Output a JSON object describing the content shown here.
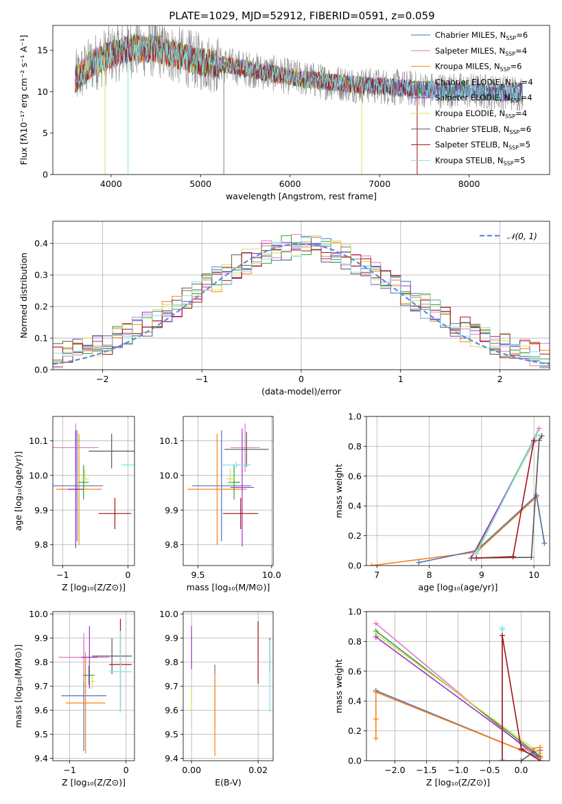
{
  "figure_title": "PLATE=1029, MJD=52912, FIBERID=0591, z=0.059",
  "colors": {
    "chabrier_miles": "#4c72b0",
    "salpeter_miles": "#e377c2",
    "kroupa_miles": "#ff7f0e",
    "chabrier_elodie": "#2ca02c",
    "salpeter_elodie": "#9b2fc9",
    "kroupa_elodie": "#d4e157",
    "chabrier_stelib": "#555555",
    "salpeter_stelib": "#a50f15",
    "kroupa_stelib": "#80deea",
    "gaussian": "#5b8bd9",
    "spectrum_data": "#808080"
  },
  "chart_data": [
    {
      "id": "spectrum",
      "type": "line",
      "title": "PLATE=1029, MJD=52912, FIBERID=0591, z=0.059",
      "xlabel": "wavelength [Angstrom, rest frame]",
      "ylabel": "Flux [fλ10⁻¹⁷ erg cm⁻² s⁻¹ A⁻¹]",
      "xlim": [
        3350,
        8900
      ],
      "ylim": [
        0,
        18
      ],
      "xticks": [
        "4000",
        "5000",
        "6000",
        "7000",
        "8000"
      ],
      "yticks": [
        "0",
        "5",
        "10",
        "15"
      ],
      "grid": false,
      "legend_position": "upper-right",
      "legend": [
        "Chabrier MILES, N_SSP=6",
        "Salpeter MILES, N_SSP=4",
        "Kroupa MILES, N_SSP=6",
        "Chabrier ELODIE, N_SSP=4",
        "Salpeter ELODIE, N_SSP=4",
        "Kroupa ELODIE, N_SSP=4",
        "Chabrier STELIB, N_SSP=6",
        "Salpeter STELIB, N_SSP=5",
        "Kroupa STELIB, N_SSP=5"
      ],
      "continuum_x": [
        3600,
        3800,
        4000,
        4200,
        4500,
        4800,
        5000,
        5300,
        5600,
        6000,
        6400,
        6800,
        7200,
        7600,
        8000,
        8400,
        8800
      ],
      "continuum_y": [
        11.5,
        13.5,
        14.5,
        15.2,
        15.2,
        14.2,
        13.6,
        13.2,
        12.6,
        11.8,
        11.2,
        10.8,
        10.5,
        10.2,
        10.1,
        9.9,
        9.8
      ]
    },
    {
      "id": "residuals",
      "type": "line",
      "xlabel": "(data-model)/error",
      "ylabel": "Normed distribution",
      "xlim": [
        -2.5,
        2.5
      ],
      "ylim": [
        0,
        0.47
      ],
      "xticks": [
        "−2",
        "−1",
        "0",
        "1",
        "2"
      ],
      "yticks": [
        "0.0",
        "0.1",
        "0.2",
        "0.3",
        "0.4"
      ],
      "grid": true,
      "legend_position": "upper-right",
      "legend": [
        "𝒩(0, 1)"
      ],
      "gaussian": {
        "mean": 0,
        "sigma": 1
      }
    },
    {
      "id": "age-vs-Z",
      "type": "scatter",
      "xlabel": "Z [log₁₀(Z/Z⊙)]",
      "ylabel": "age  [log₁₀(age/yr)]",
      "xlim": [
        -1.15,
        0.1
      ],
      "ylim": [
        9.74,
        10.17
      ],
      "xticks": [
        "−1",
        "0"
      ],
      "yticks": [
        "9.8",
        "9.9",
        "10.0",
        "10.1"
      ],
      "grid": true,
      "errorbars": [
        {
          "c": "chabrier_miles",
          "x": -0.78,
          "xe": 0.4,
          "y": 9.97,
          "ye": 0.16
        },
        {
          "c": "salpeter_miles",
          "x": -0.8,
          "xe": 0.35,
          "y": 10.08,
          "ye": 0.07
        },
        {
          "c": "kroupa_miles",
          "x": -0.75,
          "xe": 0.35,
          "y": 9.96,
          "ye": 0.16
        },
        {
          "c": "chabrier_elodie",
          "x": -0.68,
          "xe": 0.08,
          "y": 9.98,
          "ye": 0.05
        },
        {
          "c": "salpeter_elodie",
          "x": -0.8,
          "xe": 0.12,
          "y": 9.96,
          "ye": 0.17
        },
        {
          "c": "kroupa_elodie",
          "x": -0.66,
          "xe": 0.06,
          "y": 9.99,
          "ye": 0.03
        },
        {
          "c": "chabrier_stelib",
          "x": -0.25,
          "xe": 0.35,
          "y": 10.07,
          "ye": 0.05
        },
        {
          "c": "salpeter_stelib",
          "x": -0.2,
          "xe": 0.25,
          "y": 9.89,
          "ye": 0.045
        },
        {
          "c": "kroupa_stelib",
          "x": 0.0,
          "xe": 0.1,
          "y": 10.03,
          "ye": 0.01
        }
      ]
    },
    {
      "id": "age-vs-mass",
      "type": "scatter",
      "xlabel": "mass [log₁₀(M/M⊙)]",
      "ylabel": "",
      "xlim": [
        9.4,
        10.01
      ],
      "ylim": [
        9.74,
        10.17
      ],
      "xticks": [
        "9.5",
        "10.0"
      ],
      "yticks": [
        "9.8",
        "9.9",
        "10.0",
        "10.1"
      ],
      "grid": true,
      "errorbars": [
        {
          "c": "chabrier_miles",
          "x": 9.66,
          "xe": 0.2,
          "y": 9.97,
          "ye": 0.16
        },
        {
          "c": "salpeter_miles",
          "x": 9.82,
          "xe": 0.1,
          "y": 10.08,
          "ye": 0.07
        },
        {
          "c": "kroupa_miles",
          "x": 9.63,
          "xe": 0.2,
          "y": 9.96,
          "ye": 0.16
        },
        {
          "c": "chabrier_elodie",
          "x": 9.745,
          "xe": 0.04,
          "y": 9.98,
          "ye": 0.05
        },
        {
          "c": "salpeter_elodie",
          "x": 9.8,
          "xe": 0.08,
          "y": 9.965,
          "ye": 0.17
        },
        {
          "c": "kroupa_elodie",
          "x": 9.72,
          "xe": 0.03,
          "y": 9.99,
          "ye": 0.03
        },
        {
          "c": "chabrier_stelib",
          "x": 9.83,
          "xe": 0.15,
          "y": 10.075,
          "ye": 0.05
        },
        {
          "c": "salpeter_stelib",
          "x": 9.79,
          "xe": 0.12,
          "y": 9.89,
          "ye": 0.045
        },
        {
          "c": "kroupa_stelib",
          "x": 9.76,
          "xe": 0.1,
          "y": 10.03,
          "ye": 0.01
        }
      ]
    },
    {
      "id": "weight-vs-age",
      "type": "line",
      "xlabel": "age  [log₁₀(age/yr)]",
      "ylabel": "mass weight",
      "xlim": [
        6.8,
        10.3
      ],
      "ylim": [
        0,
        1.0
      ],
      "xticks": [
        "7",
        "8",
        "9",
        "10"
      ],
      "yticks": [
        "0.0",
        "0.2",
        "0.4",
        "0.6",
        "0.8",
        "1.0"
      ],
      "grid": true,
      "lines": [
        {
          "c": "kroupa_miles",
          "x": [
            6.9,
            8.9,
            10.05,
            10.2
          ],
          "y": [
            0.0,
            0.09,
            0.46,
            0.15
          ]
        },
        {
          "c": "chabrier_miles",
          "x": [
            7.8,
            8.9,
            10.05,
            10.2
          ],
          "y": [
            0.02,
            0.1,
            0.47,
            0.15
          ]
        },
        {
          "c": "salpeter_miles",
          "x": [
            8.9,
            10.1
          ],
          "y": [
            0.08,
            0.92
          ]
        },
        {
          "c": "chabrier_elodie",
          "x": [
            8.9,
            10.05
          ],
          "y": [
            0.1,
            0.88
          ]
        },
        {
          "c": "salpeter_elodie",
          "x": [
            8.8,
            10.0
          ],
          "y": [
            0.05,
            0.83
          ]
        },
        {
          "c": "kroupa_elodie",
          "x": [
            8.9,
            10.05
          ],
          "y": [
            0.09,
            0.87
          ]
        },
        {
          "c": "kroupa_stelib",
          "x": [
            8.9,
            10.05
          ],
          "y": [
            0.08,
            0.88
          ]
        },
        {
          "c": "chabrier_stelib",
          "x": [
            8.8,
            9.95,
            10.1,
            10.15
          ],
          "y": [
            0.05,
            0.055,
            0.84,
            0.87
          ]
        },
        {
          "c": "salpeter_stelib",
          "x": [
            8.9,
            9.6,
            10.0
          ],
          "y": [
            0.05,
            0.06,
            0.84
          ]
        }
      ]
    },
    {
      "id": "mass-vs-Z",
      "type": "scatter",
      "xlabel": "Z [log₁₀(Z/Z⊙)]",
      "ylabel": "mass [log₁₀(M/M⊙)]",
      "xlim": [
        -1.3,
        0.15
      ],
      "ylim": [
        9.39,
        10.01
      ],
      "xticks": [
        "−1",
        "0"
      ],
      "yticks": [
        "9.4",
        "9.5",
        "9.6",
        "9.7",
        "9.8",
        "9.9",
        "10.0"
      ],
      "grid": true,
      "errorbars": [
        {
          "c": "chabrier_miles",
          "x": -0.75,
          "xe": 0.4,
          "y": 9.66,
          "ye": 0.23
        },
        {
          "c": "salpeter_miles",
          "x": -0.75,
          "xe": 0.45,
          "y": 9.82,
          "ye": 0.1
        },
        {
          "c": "kroupa_miles",
          "x": -0.72,
          "xe": 0.35,
          "y": 9.63,
          "ye": 0.21
        },
        {
          "c": "chabrier_elodie",
          "x": -0.66,
          "xe": 0.1,
          "y": 9.745,
          "ye": 0.04
        },
        {
          "c": "salpeter_elodie",
          "x": -0.65,
          "xe": 0.15,
          "y": 9.82,
          "ye": 0.13
        },
        {
          "c": "kroupa_elodie",
          "x": -0.6,
          "xe": 0.05,
          "y": 9.72,
          "ye": 0.03
        },
        {
          "c": "chabrier_stelib",
          "x": -0.25,
          "xe": 0.35,
          "y": 9.825,
          "ye": 0.075
        },
        {
          "c": "salpeter_stelib",
          "x": -0.1,
          "xe": 0.2,
          "y": 9.79,
          "ye": 0.19
        },
        {
          "c": "kroupa_stelib",
          "x": -0.1,
          "xe": 0.2,
          "y": 9.76,
          "ye": 0.17
        }
      ]
    },
    {
      "id": "mass-vs-ebv",
      "type": "scatter",
      "xlabel": "E(B-V)",
      "ylabel": "",
      "xlim": [
        -0.0025,
        0.0245
      ],
      "ylim": [
        9.39,
        10.01
      ],
      "xticks": [
        "0.00",
        "0.02"
      ],
      "yticks": [
        "9.4",
        "9.5",
        "9.6",
        "9.7",
        "9.8",
        "9.9",
        "10.0"
      ],
      "grid": true,
      "errorbars": [
        {
          "c": "chabrier_miles",
          "x": 0.007,
          "xe": 0,
          "y": 9.66,
          "ye": 0.13
        },
        {
          "c": "salpeter_elodie",
          "x": 0.0,
          "xe": 0,
          "y": 9.86,
          "ye": 0.09
        },
        {
          "c": "kroupa_elodie",
          "x": 0.0,
          "xe": 0,
          "y": 9.65,
          "ye": 0.05
        },
        {
          "c": "kroupa_miles",
          "x": 0.007,
          "xe": 0,
          "y": 9.58,
          "ye": 0.17
        },
        {
          "c": "salpeter_stelib",
          "x": 0.02,
          "xe": 0,
          "y": 9.84,
          "ye": 0.13
        },
        {
          "c": "chabrier_stelib",
          "x": 0.0235,
          "xe": 0,
          "y": 9.83,
          "ye": 0.07
        },
        {
          "c": "kroupa_stelib",
          "x": 0.0235,
          "xe": 0,
          "y": 9.74,
          "ye": 0.15
        }
      ]
    },
    {
      "id": "weight-vs-Z",
      "type": "line",
      "xlabel": "Z [log₁₀(Z/Z⊙)]",
      "ylabel": "mass weight",
      "xlim": [
        -2.45,
        0.45
      ],
      "ylim": [
        0,
        1.0
      ],
      "xticks": [
        "−2.0",
        "−1.5",
        "−1.0",
        "−0.5",
        "0.0"
      ],
      "yticks": [
        "0.0",
        "0.2",
        "0.4",
        "0.6",
        "0.8",
        "1.0"
      ],
      "grid": true,
      "lines": [
        {
          "c": "salpeter_miles",
          "x": [
            -2.3,
            0.3,
            0.3
          ],
          "y": [
            0.92,
            0.0,
            0.07
          ]
        },
        {
          "c": "chabrier_elodie",
          "x": [
            -2.3,
            0.3,
            0.3
          ],
          "y": [
            0.87,
            0.03,
            0.07
          ]
        },
        {
          "c": "kroupa_elodie",
          "x": [
            -2.3,
            0.3,
            0.3
          ],
          "y": [
            0.85,
            0.05,
            0.07
          ]
        },
        {
          "c": "salpeter_elodie",
          "x": [
            -2.3,
            0.3,
            0.3
          ],
          "y": [
            0.83,
            0.02,
            0.07
          ]
        },
        {
          "c": "chabrier_miles",
          "x": [
            -2.3,
            0.0,
            0.3
          ],
          "y": [
            0.47,
            0.07,
            0.02
          ]
        },
        {
          "c": "kroupa_miles",
          "x": [
            -2.3,
            -2.3,
            -2.3,
            0.0,
            0.3,
            0.3
          ],
          "y": [
            0.15,
            0.28,
            0.46,
            0.07,
            0.09,
            0.02
          ]
        },
        {
          "c": "kroupa_stelib",
          "x": [
            -0.3,
            -0.3,
            -0.3
          ],
          "y": [
            0.01,
            0.89,
            0.88
          ]
        },
        {
          "c": "salpeter_stelib",
          "x": [
            -0.3,
            -0.3,
            0.0,
            0.3
          ],
          "y": [
            0.0,
            0.84,
            0.08,
            0.0
          ]
        },
        {
          "c": "chabrier_stelib",
          "x": [
            -0.3,
            0.0,
            0.2
          ],
          "y": [
            0.0,
            0.0,
            0.06
          ]
        }
      ]
    }
  ]
}
